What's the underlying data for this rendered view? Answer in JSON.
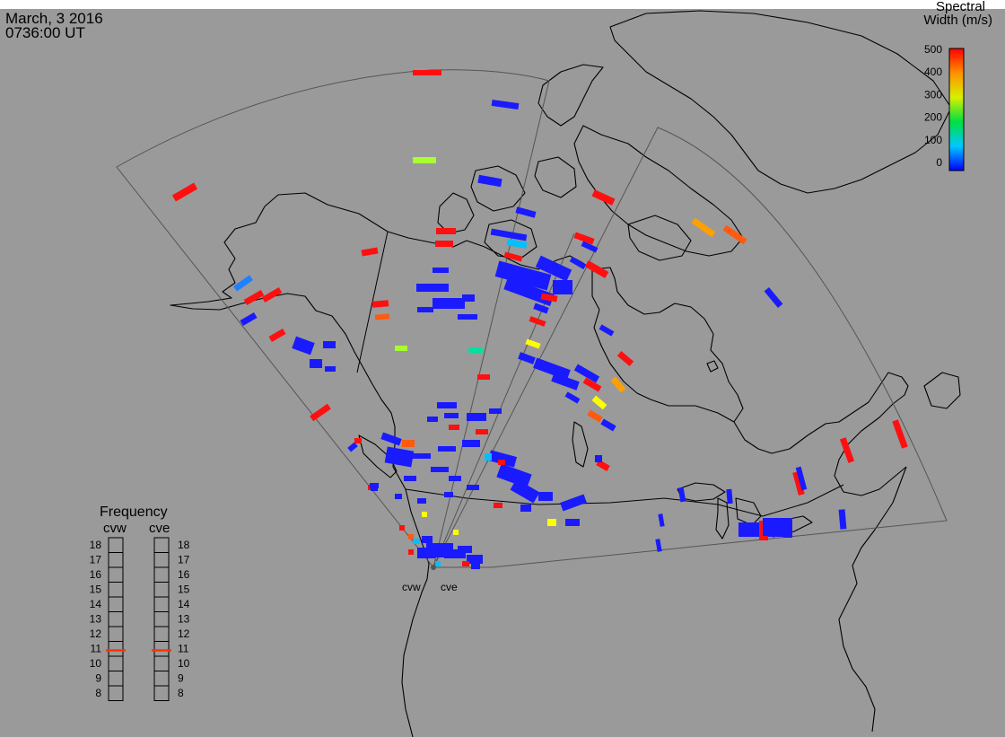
{
  "header": {
    "date": "March, 3 2016",
    "time": "0736:00 UT"
  },
  "colorbar": {
    "title_line1": "Spectral",
    "title_line2": "Width (m/s)",
    "ticks": [
      "500",
      "400",
      "300",
      "200",
      "100",
      "0"
    ]
  },
  "frequency": {
    "title": "Frequency",
    "radars": [
      {
        "label": "cvw",
        "value": 10.7
      },
      {
        "label": "cve",
        "value": 10.7
      }
    ],
    "ticks": [
      "18",
      "17",
      "16",
      "15",
      "14",
      "13",
      "12",
      "11",
      "10",
      "9",
      "8"
    ]
  },
  "radar_sites": [
    {
      "label": "cvw"
    },
    {
      "label": "cve"
    }
  ],
  "colors": {
    "background": "#9a9a9a",
    "land_outline": "#000000",
    "fov_outline": "#555555",
    "marker": "#ff3300"
  }
}
